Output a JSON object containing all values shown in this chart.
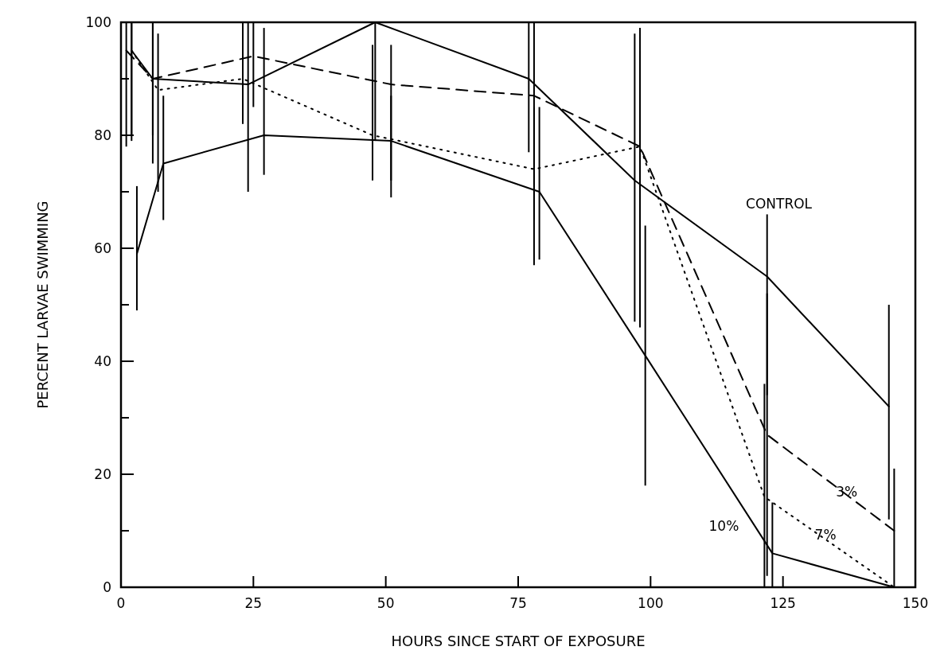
{
  "chart_data": {
    "type": "line",
    "xlabel": "HOURS SINCE START OF EXPOSURE",
    "ylabel": "PERCENT LARVAE SWIMMING",
    "xlim": [
      0,
      150
    ],
    "ylim": [
      0,
      100
    ],
    "xticks": [
      0,
      25,
      50,
      75,
      100,
      125,
      150
    ],
    "yticks": [
      0,
      {
        "value": 10,
        "label": null
      },
      20,
      {
        "value": 30,
        "label": null
      },
      40,
      {
        "value": 50,
        "label": null
      },
      60,
      {
        "value": 70,
        "label": null
      },
      80,
      {
        "value": 90,
        "label": null
      },
      100
    ],
    "grid": false,
    "marker": "none",
    "series": [
      {
        "name": "CONTROL",
        "color": "#000000",
        "line_style": "solid",
        "x": [
          2,
          6,
          24,
          48,
          77,
          97,
          122,
          145
        ],
        "values": [
          95,
          90,
          89,
          100,
          90,
          72,
          55,
          32
        ],
        "errors": [
          [
            79,
            100
          ],
          [
            75,
            100
          ],
          [
            70,
            100
          ],
          [
            79,
            100
          ],
          [
            77,
            100
          ],
          [
            47,
            98
          ],
          [
            34,
            66
          ],
          [
            12,
            50
          ]
        ]
      },
      {
        "name": "3%",
        "color": "#000000",
        "line_style": "dashed",
        "x": [
          1,
          6,
          25,
          51,
          78,
          98,
          122,
          146
        ],
        "values": [
          95,
          90,
          94,
          89,
          87,
          78,
          27,
          10
        ],
        "errors": [
          [
            78,
            100
          ],
          [
            80,
            100
          ],
          [
            85,
            100
          ],
          [
            72,
            96
          ],
          [
            57,
            100
          ],
          [
            46,
            99
          ],
          [
            2,
            52
          ],
          [
            0,
            21
          ]
        ]
      },
      {
        "name": "7%",
        "color": "#000000",
        "line_style": "dotted",
        "x": [
          2,
          7,
          23,
          47.5,
          78,
          98,
          121.5,
          146
        ],
        "values": [
          95,
          88,
          90,
          80,
          74,
          78,
          16,
          0
        ],
        "errors": [
          [
            80,
            100
          ],
          [
            70,
            98
          ],
          [
            82,
            100
          ],
          [
            72,
            96
          ],
          [
            65,
            85
          ],
          [
            47,
            95
          ],
          [
            0,
            36
          ],
          null
        ]
      },
      {
        "name": "10%",
        "color": "#000000",
        "line_style": "solid",
        "x": [
          3,
          8,
          27,
          51,
          79,
          99,
          123,
          146
        ],
        "values": [
          59,
          75,
          80,
          79,
          70,
          41,
          6,
          0
        ],
        "errors": [
          [
            49,
            71
          ],
          [
            65,
            87
          ],
          [
            73,
            99
          ],
          [
            69,
            87
          ],
          [
            58,
            85
          ],
          [
            18,
            64
          ],
          [
            0,
            15
          ],
          null
        ]
      }
    ]
  }
}
